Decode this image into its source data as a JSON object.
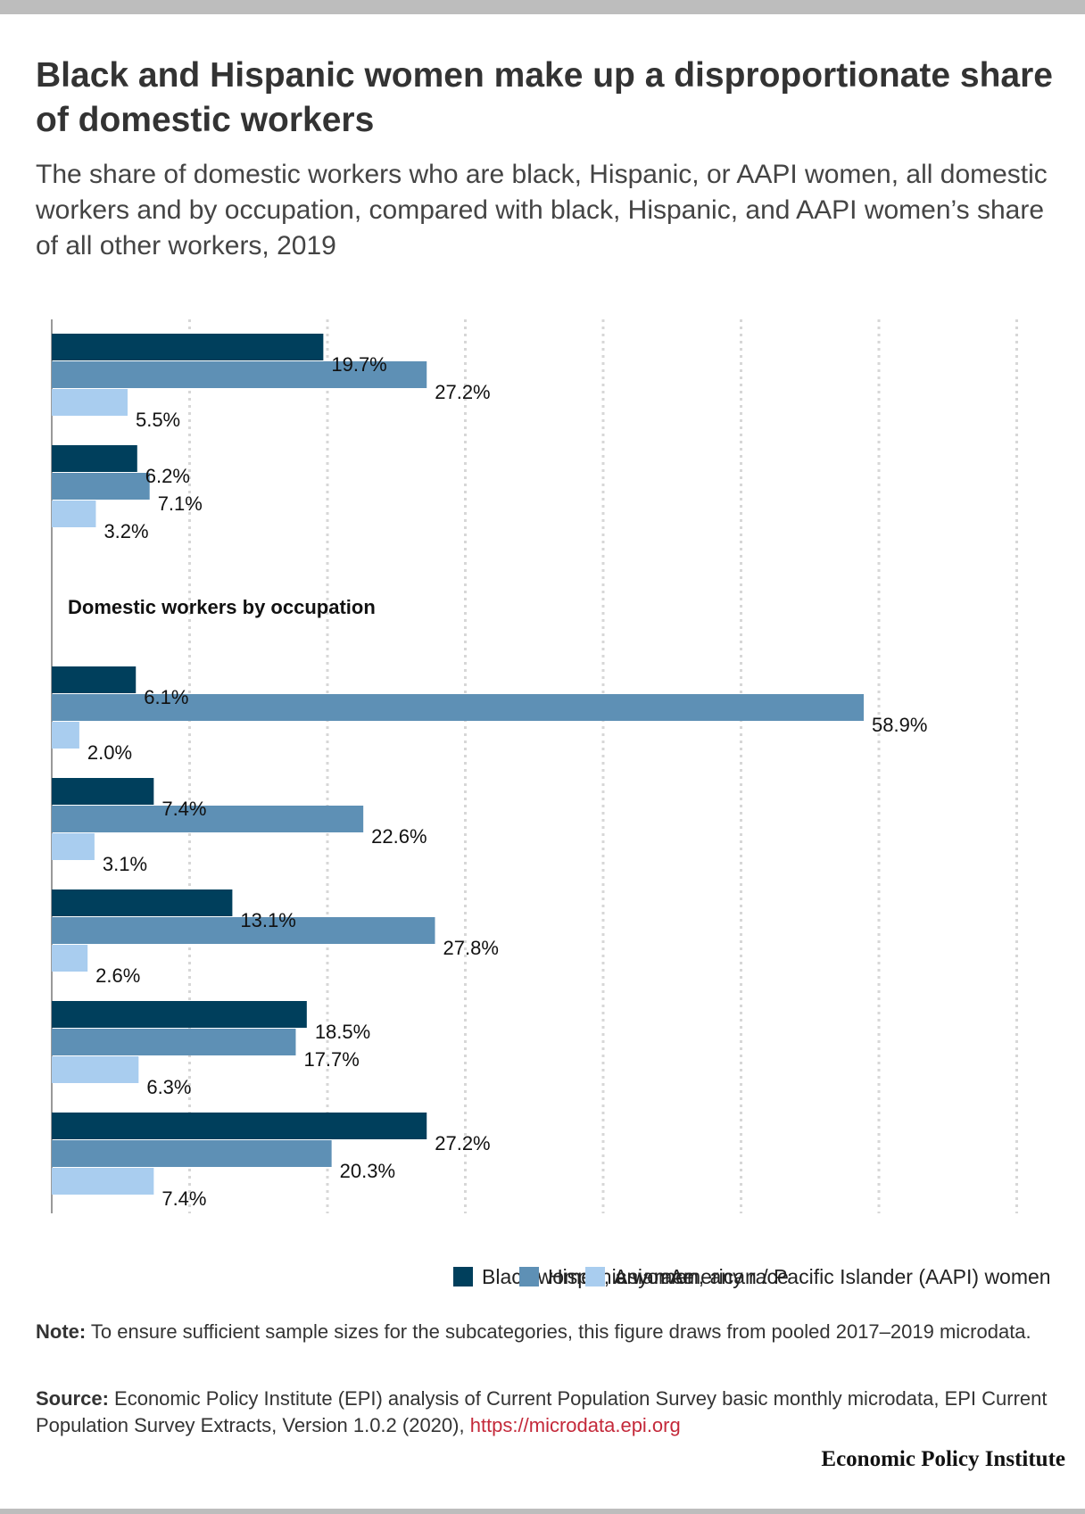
{
  "title": "Black and Hispanic women make up a disproportionate share of domestic workers",
  "subtitle": "The share of domestic workers who are black, Hispanic, or AAPI women, all domestic workers and by occupation, compared with black, Hispanic, and AAPI women’s share of all other workers, 2019",
  "chart_data": {
    "type": "bar",
    "orientation": "horizontal",
    "categories": [
      "",
      "",
      "",
      "",
      "",
      "",
      ""
    ],
    "group_header": "Domestic workers by occupation",
    "series": [
      {
        "name": "Black women",
        "color": "#003f5c",
        "values": [
          19.7,
          6.2,
          6.1,
          7.4,
          13.1,
          18.5,
          27.2
        ]
      },
      {
        "name": "Hispanic women",
        "color": "#5e90b5",
        "values": [
          27.2,
          7.1,
          58.9,
          22.6,
          27.8,
          17.7,
          20.3
        ]
      },
      {
        "name": "Asian American / Pacific Islander (AAPI) women",
        "color": "#a9cdef",
        "values": [
          5.5,
          3.2,
          2.0,
          3.1,
          2.6,
          6.3,
          7.4
        ]
      }
    ],
    "value_suffix": "%",
    "xlim": [
      0,
      70
    ],
    "grid": true,
    "legend_position": "bottom-right"
  },
  "legend": {
    "items": [
      {
        "label": "Black women, any race",
        "color": "#003f5c"
      },
      {
        "label": "Hispanic women, any race",
        "color": "#5e90b5"
      },
      {
        "label": "Asian American / Pacific Islander (AAPI) women",
        "color": "#a9cdef"
      }
    ]
  },
  "note": {
    "label": "Note:",
    "text": " To ensure sufficient sample sizes for the subcategories, this figure draws from pooled 2017–2019 microdata."
  },
  "source": {
    "label": "Source:",
    "text": " Economic Policy Institute (EPI) analysis of Current Population Survey basic monthly microdata, EPI Current Population Survey Extracts, Version 1.0.2 (2020), ",
    "link": "https://microdata.epi.org"
  },
  "brand": "Economic Policy Institute"
}
